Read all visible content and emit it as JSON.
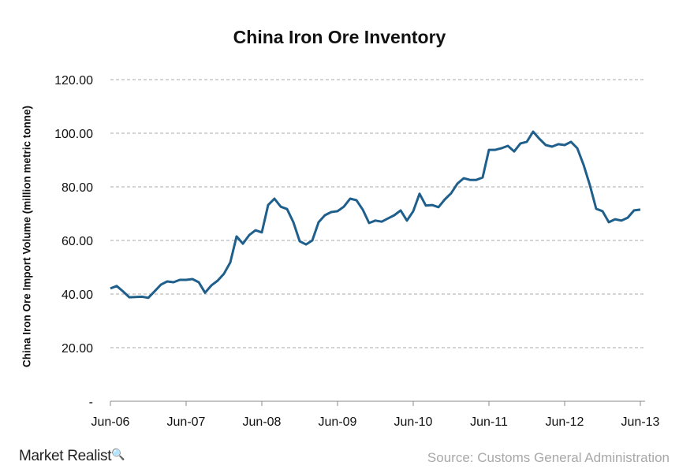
{
  "chart_data": {
    "type": "line",
    "title": "China Iron Ore Inventory",
    "ylabel": "China Iron Ore Import Volume (million metric tonne)",
    "xlabel": "",
    "ylim": [
      0,
      120
    ],
    "yticks": [
      0,
      20,
      40,
      60,
      80,
      100,
      120
    ],
    "ytick_labels": [
      "-",
      "20.00",
      "40.00",
      "60.00",
      "80.00",
      "100.00",
      "120.00"
    ],
    "xtick_labels": [
      "Jun-06",
      "Jun-07",
      "Jun-08",
      "Jun-09",
      "Jun-10",
      "Jun-11",
      "Jun-12",
      "Jun-13"
    ],
    "grid": "horizontal dashed",
    "line_color": "#1f5f8c",
    "x": [
      "2006-06",
      "2006-07",
      "2006-08",
      "2006-09",
      "2006-10",
      "2006-11",
      "2006-12",
      "2007-01",
      "2007-02",
      "2007-03",
      "2007-04",
      "2007-05",
      "2007-06",
      "2007-07",
      "2007-08",
      "2007-09",
      "2007-10",
      "2007-11",
      "2007-12",
      "2008-01",
      "2008-02",
      "2008-03",
      "2008-04",
      "2008-05",
      "2008-06",
      "2008-07",
      "2008-08",
      "2008-09",
      "2008-10",
      "2008-11",
      "2008-12",
      "2009-01",
      "2009-02",
      "2009-03",
      "2009-04",
      "2009-05",
      "2009-06",
      "2009-07",
      "2009-08",
      "2009-09",
      "2009-10",
      "2009-11",
      "2009-12",
      "2010-01",
      "2010-02",
      "2010-03",
      "2010-04",
      "2010-05",
      "2010-06",
      "2010-07",
      "2010-08",
      "2010-09",
      "2010-10",
      "2010-11",
      "2010-12",
      "2011-01",
      "2011-02",
      "2011-03",
      "2011-04",
      "2011-05",
      "2011-06",
      "2011-07",
      "2011-08",
      "2011-09",
      "2011-10",
      "2011-11",
      "2011-12",
      "2012-01",
      "2012-02",
      "2012-03",
      "2012-04",
      "2012-05",
      "2012-06",
      "2012-07",
      "2012-08",
      "2012-09",
      "2012-10",
      "2012-11",
      "2012-12",
      "2013-01",
      "2013-02",
      "2013-03",
      "2013-04",
      "2013-05",
      "2013-06"
    ],
    "values": [
      42.1,
      43.0,
      41.0,
      38.8,
      38.9,
      39.0,
      38.6,
      41.0,
      43.5,
      44.7,
      44.4,
      45.3,
      45.3,
      45.6,
      44.4,
      40.5,
      43.2,
      45.0,
      47.6,
      51.8,
      61.5,
      58.8,
      62.0,
      63.8,
      63.0,
      73.2,
      75.6,
      72.6,
      71.7,
      66.8,
      59.7,
      58.5,
      60.0,
      66.8,
      69.4,
      70.6,
      70.9,
      72.6,
      75.6,
      75.0,
      71.5,
      66.5,
      67.4,
      67.0,
      68.2,
      69.4,
      71.2,
      67.4,
      70.9,
      77.4,
      73.0,
      73.2,
      72.4,
      75.3,
      77.6,
      81.2,
      83.2,
      82.6,
      82.6,
      83.5,
      93.8,
      93.8,
      94.4,
      95.3,
      93.2,
      96.2,
      96.8,
      100.6,
      97.9,
      95.6,
      95.0,
      95.9,
      95.6,
      96.8,
      94.4,
      88.2,
      80.6,
      71.8,
      70.9,
      66.8,
      67.9,
      67.4,
      68.5,
      71.2,
      71.5
    ]
  },
  "footer": {
    "brand": "Market Realist",
    "source": "Source: Customs General Administration"
  }
}
